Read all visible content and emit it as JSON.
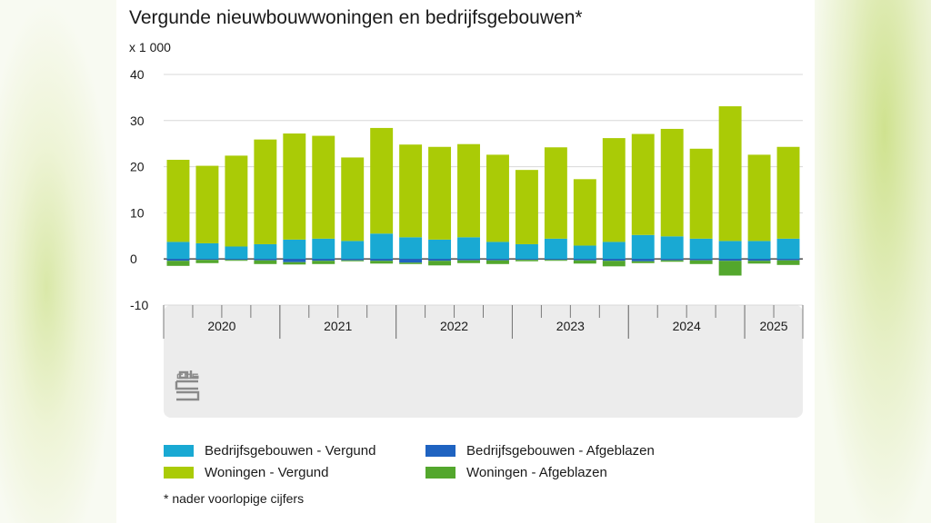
{
  "title": "Vergunde nieuwbouwwoningen en bedrijfsgebouwen*",
  "footnote": "* nader voorlopige cijfers",
  "chart_data": {
    "type": "bar",
    "stacked": true,
    "ylabel": "x 1 000",
    "ylim": [
      -10,
      40
    ],
    "yticks": [
      40,
      30,
      20,
      10,
      0,
      -10
    ],
    "grid": true,
    "legend_position": "bottom",
    "year_labels": [
      "2020",
      "2021",
      "2022",
      "2023",
      "2024",
      "2025"
    ],
    "quarters_per_year": [
      4,
      4,
      4,
      4,
      4,
      2
    ],
    "categories": [
      "2020-K1",
      "2020-K2",
      "2020-K3",
      "2020-K4",
      "2021-K1",
      "2021-K2",
      "2021-K3",
      "2021-K4",
      "2022-K1",
      "2022-K2",
      "2022-K3",
      "2022-K4",
      "2023-K1",
      "2023-K2",
      "2023-K3",
      "2023-K4",
      "2024-K1",
      "2024-K2",
      "2024-K3",
      "2024-K4",
      "2025-K1",
      "2025-K2"
    ],
    "series": [
      {
        "name": "Bedrijfsgebouwen - Vergund",
        "color": "#19a9d3",
        "values": [
          3.7,
          3.4,
          2.7,
          3.2,
          4.2,
          4.4,
          3.9,
          5.5,
          4.7,
          4.2,
          4.7,
          3.7,
          3.2,
          4.4,
          2.9,
          3.7,
          5.2,
          4.9,
          4.4,
          3.9,
          3.9,
          4.4
        ]
      },
      {
        "name": "Woningen - Vergund",
        "color": "#aacb06",
        "values": [
          17.8,
          16.8,
          19.7,
          22.7,
          23.0,
          22.3,
          18.1,
          22.9,
          20.1,
          20.1,
          20.2,
          18.9,
          16.1,
          19.8,
          14.4,
          22.5,
          21.9,
          23.3,
          19.5,
          29.2,
          18.7,
          19.9
        ]
      },
      {
        "name": "Bedrijfsgebouwen - Afgeblazen",
        "color": "#1f63c1",
        "values": [
          -0.4,
          -0.2,
          -0.2,
          -0.3,
          -0.7,
          -0.4,
          -0.3,
          -0.4,
          -0.8,
          -0.4,
          -0.3,
          -0.3,
          -0.2,
          -0.2,
          -0.3,
          -0.4,
          -0.5,
          -0.3,
          -0.3,
          -0.4,
          -0.4,
          -0.3
        ]
      },
      {
        "name": "Woningen - Afgeblazen",
        "color": "#53a72d",
        "values": [
          -1.1,
          -0.7,
          -0.2,
          -0.8,
          -0.5,
          -0.7,
          -0.2,
          -0.6,
          -0.3,
          -1.0,
          -0.6,
          -0.8,
          -0.3,
          -0.2,
          -0.7,
          -1.2,
          -0.4,
          -0.3,
          -0.8,
          -3.2,
          -0.6,
          -1.0
        ]
      }
    ]
  },
  "legend": [
    {
      "label": "Bedrijfsgebouwen - Vergund",
      "color": "#19a9d3"
    },
    {
      "label": "Bedrijfsgebouwen - Afgeblazen",
      "color": "#1f63c1"
    },
    {
      "label": "Woningen - Vergund",
      "color": "#aacb06"
    },
    {
      "label": "Woningen - Afgeblazen",
      "color": "#53a72d"
    }
  ],
  "logo_text": "cbs"
}
